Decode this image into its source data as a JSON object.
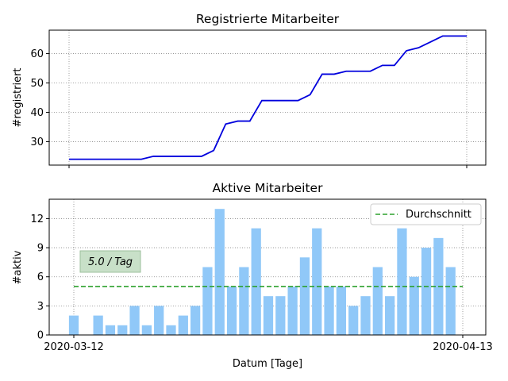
{
  "chart_data": [
    {
      "type": "line",
      "title": "Registrierte Mitarbeiter",
      "ylabel": "#registriert",
      "xlabel": "",
      "x_start": "2020-03-12",
      "x_end": "2020-04-13",
      "ylim": [
        22,
        68
      ],
      "yticks": [
        30,
        40,
        50,
        60
      ],
      "grid": true,
      "color": "#0000dd",
      "values": [
        24,
        24,
        24,
        24,
        24,
        24,
        24,
        25,
        25,
        25,
        25,
        25,
        27,
        36,
        37,
        37,
        44,
        44,
        44,
        44,
        46,
        53,
        53,
        54,
        54,
        54,
        56,
        56,
        61,
        62,
        64,
        66,
        66,
        66
      ]
    },
    {
      "type": "bar",
      "title": "Aktive Mitarbeiter",
      "ylabel": "#aktiv",
      "xlabel": "Datum [Tage]",
      "xtick_labels": [
        "2020-03-12",
        "2020-04-13"
      ],
      "ylim": [
        0,
        14
      ],
      "yticks": [
        0,
        3,
        6,
        9,
        12
      ],
      "grid": true,
      "color": "#90c8f8",
      "values": [
        2,
        0,
        2,
        1,
        1,
        3,
        1,
        3,
        1,
        2,
        3,
        7,
        13,
        5,
        7,
        11,
        4,
        4,
        5,
        8,
        11,
        5,
        5,
        3,
        4,
        7,
        4,
        11,
        6,
        9,
        10,
        7
      ],
      "average": {
        "value": 5.0,
        "label": "Durchschnitt",
        "color": "#2ca02c"
      },
      "annotation": "5.0 / Tag",
      "legend_position": "top-right"
    }
  ]
}
